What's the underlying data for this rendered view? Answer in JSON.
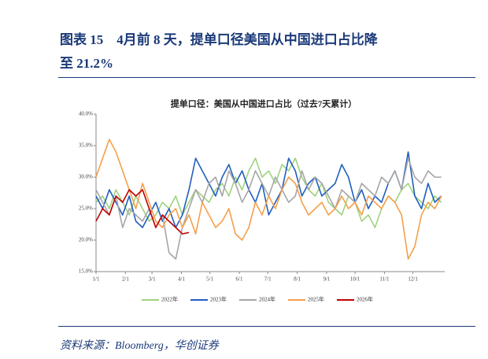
{
  "figure_title": [
    "图表 15　4月前 8 天，提单口径美国从中国进口占比降",
    "至 21.2%"
  ],
  "source": "资料来源：Bloomberg，华创证券",
  "chart_data": {
    "type": "line",
    "title": "提单口径：美国从中国进口占比（过去7天累计）",
    "x": [
      0,
      7,
      14,
      21,
      28,
      35,
      42,
      49,
      56,
      63,
      70,
      77,
      84,
      91,
      98,
      105,
      112,
      119,
      126,
      133,
      140,
      147,
      154,
      161,
      168,
      175,
      182,
      189,
      196,
      203,
      210,
      217,
      224,
      231,
      238,
      245,
      252,
      259,
      266,
      273,
      280,
      287,
      294,
      301,
      308,
      315,
      322,
      329,
      336,
      343,
      350,
      357,
      364
    ],
    "xlim": [
      0,
      365
    ],
    "xticks": [
      {
        "value": 0,
        "label": "1/1"
      },
      {
        "value": 31,
        "label": "2/1"
      },
      {
        "value": 59,
        "label": "3/1"
      },
      {
        "value": 90,
        "label": "4/1"
      },
      {
        "value": 120,
        "label": "5/1"
      },
      {
        "value": 151,
        "label": "6/1"
      },
      {
        "value": 181,
        "label": "7/1"
      },
      {
        "value": 212,
        "label": "8/1"
      },
      {
        "value": 243,
        "label": "9/1"
      },
      {
        "value": 273,
        "label": "10/1"
      },
      {
        "value": 304,
        "label": "11/1"
      },
      {
        "value": 334,
        "label": "12/1"
      }
    ],
    "ylim": [
      15,
      40
    ],
    "yticks": [
      {
        "value": 15,
        "label": "15.0%"
      },
      {
        "value": 20,
        "label": "20.0%"
      },
      {
        "value": 25,
        "label": "25.0%"
      },
      {
        "value": 30,
        "label": "30.0%"
      },
      {
        "value": 35,
        "label": "35.0%"
      },
      {
        "value": 40,
        "label": "40.0%"
      }
    ],
    "grid": false,
    "legend": "bottom",
    "series": [
      {
        "name": "2022年",
        "color": "#9fd27e",
        "values": [
          26,
          27,
          25,
          28,
          26,
          24,
          27,
          25,
          23,
          24,
          26,
          25,
          27,
          24,
          26,
          28,
          27,
          26,
          28,
          29,
          27,
          30,
          28,
          31,
          33,
          30,
          31,
          29,
          32,
          31,
          33,
          30,
          28,
          27,
          29,
          26,
          25,
          24,
          27,
          26,
          23,
          24,
          22,
          25,
          27,
          26,
          28,
          29,
          27,
          26,
          25,
          27,
          26
        ]
      },
      {
        "name": "2023年",
        "color": "#1f5fbf",
        "values": [
          27,
          25,
          28,
          26,
          24,
          27,
          23,
          22,
          24,
          26,
          23,
          25,
          22,
          24,
          28,
          33,
          31,
          29,
          27,
          30,
          32,
          29,
          31,
          28,
          26,
          29,
          24,
          26,
          28,
          33,
          31,
          27,
          29,
          30,
          27,
          28,
          29,
          32,
          30,
          26,
          28,
          25,
          27,
          26,
          29,
          31,
          28,
          34,
          27,
          25,
          29,
          26,
          27
        ]
      },
      {
        "name": "2024年",
        "color": "#a6a6a6",
        "values": [
          28,
          26,
          24,
          27,
          22,
          25,
          24,
          23,
          25,
          22,
          24,
          18,
          17,
          22,
          25,
          28,
          26,
          29,
          30,
          27,
          31,
          29,
          26,
          28,
          31,
          29,
          27,
          30,
          28,
          26,
          27,
          31,
          28,
          30,
          29,
          27,
          25,
          28,
          27,
          26,
          29,
          28,
          27,
          30,
          29,
          31,
          28,
          33,
          30,
          29,
          31,
          30,
          30
        ]
      },
      {
        "name": "2025年",
        "color": "#f4a04a",
        "values": [
          30,
          33,
          36,
          34,
          31,
          28,
          25,
          29,
          26,
          23,
          22,
          24,
          25,
          22,
          24,
          21,
          26,
          24,
          22,
          23,
          25,
          21,
          20,
          22,
          26,
          24,
          27,
          25,
          28,
          30,
          29,
          26,
          24,
          25,
          26,
          24,
          25,
          27,
          25,
          26,
          24,
          27,
          26,
          25,
          27,
          26,
          24,
          17,
          19,
          24,
          26,
          25,
          27
        ]
      },
      {
        "name": "2026年",
        "color": "#c00000",
        "values": [
          23,
          25,
          24,
          27,
          26,
          28,
          27,
          28,
          25,
          22,
          24,
          23,
          22,
          21,
          21.2,
          null,
          null,
          null,
          null,
          null,
          null,
          null,
          null,
          null,
          null,
          null,
          null,
          null,
          null,
          null,
          null,
          null,
          null,
          null,
          null,
          null,
          null,
          null,
          null,
          null,
          null,
          null,
          null,
          null,
          null,
          null,
          null,
          null,
          null,
          null,
          null,
          null,
          null
        ]
      }
    ]
  }
}
